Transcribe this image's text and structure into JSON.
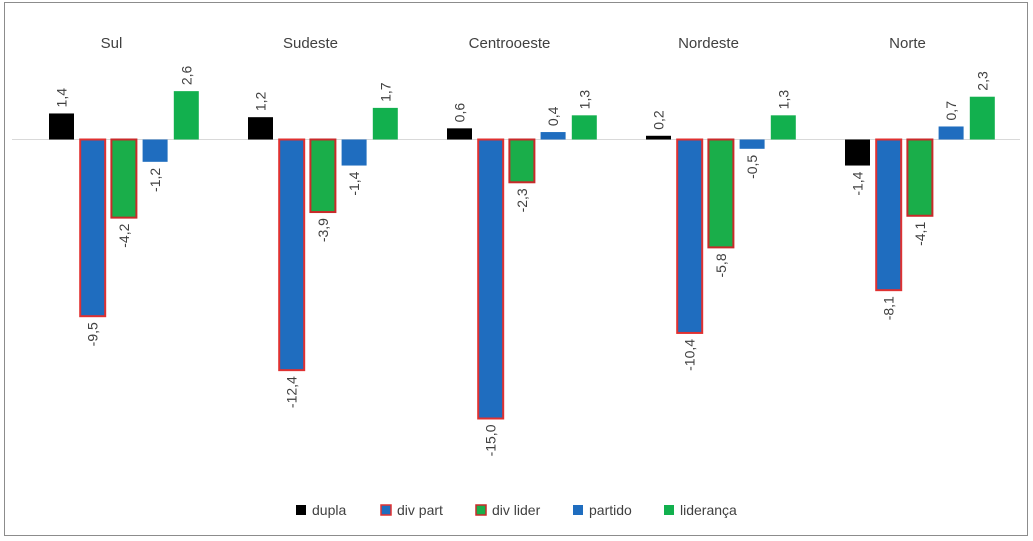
{
  "chart_data": {
    "type": "bar",
    "categories": [
      "Sul",
      "Sudeste",
      "Centrooeste",
      "Nordeste",
      "Norte"
    ],
    "series": [
      {
        "name": "dupla",
        "values": [
          1.4,
          1.2,
          0.6,
          0.2,
          -1.4
        ],
        "labels": [
          "1,4",
          "1,2",
          "0,6",
          "0,2",
          "-1,4"
        ]
      },
      {
        "name": "div part",
        "values": [
          -9.5,
          -12.4,
          -15.0,
          -10.4,
          -8.1
        ],
        "labels": [
          "-9,5",
          "-12,4",
          "-15,0",
          "-10,4",
          "-8,1"
        ]
      },
      {
        "name": "div lider",
        "values": [
          -4.2,
          -3.9,
          -2.3,
          -5.8,
          -4.1
        ],
        "labels": [
          "-4,2",
          "-3,9",
          "-2,3",
          "-5,8",
          "-4,1"
        ]
      },
      {
        "name": "partido",
        "values": [
          -1.2,
          -1.4,
          0.4,
          -0.5,
          0.7
        ],
        "labels": [
          "-1,2",
          "-1,4",
          "0,4",
          "-0,5",
          "0,7"
        ]
      },
      {
        "name": "liderança",
        "values": [
          2.6,
          1.7,
          1.3,
          1.3,
          2.3
        ],
        "labels": [
          "2,6",
          "1,7",
          "1,3",
          "1,3",
          "2,3"
        ]
      }
    ],
    "title": "",
    "xlabel": "",
    "ylabel": "",
    "legend_position": "bottom",
    "grid": false,
    "colors": {
      "dupla": {
        "fill": "#000000",
        "stroke": "none"
      },
      "div part": {
        "fill": "#1f6dbf",
        "stroke": "#e03131"
      },
      "div lider": {
        "fill": "#1aae4a",
        "stroke": "#c92a2a"
      },
      "partido": {
        "fill": "#1f6dbf",
        "stroke": "none"
      },
      "liderança": {
        "fill": "#12b04e",
        "stroke": "none"
      }
    }
  }
}
